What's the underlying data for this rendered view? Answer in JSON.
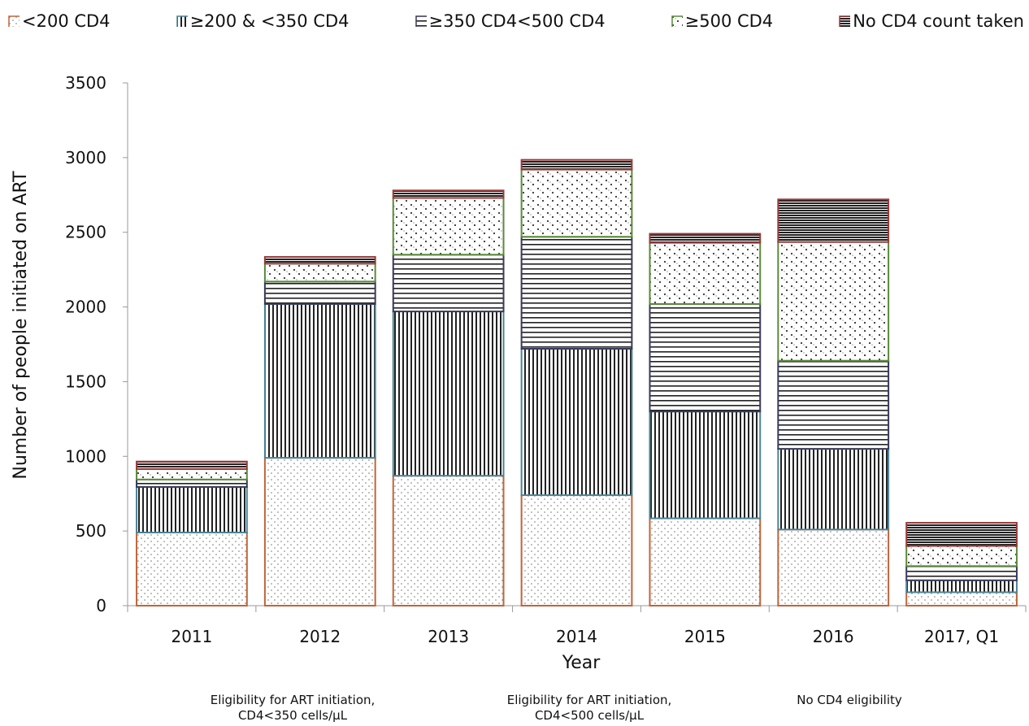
{
  "legend": [
    {
      "label": "<200 CD4",
      "key": "lt200"
    },
    {
      "label": "≥200 & <350 CD4",
      "key": "200to350"
    },
    {
      "label": "≥350 CD4<500 CD4",
      "key": "350to500"
    },
    {
      "label": "≥500 CD4",
      "key": "ge500"
    },
    {
      "label": "No CD4 count taken",
      "key": "none"
    }
  ],
  "notes": {
    "note1_line1": "Eligibility for ART initiation,",
    "note1_line2": "CD4<350 cells/µL",
    "note2_line1": "Eligibility for ART initiation,",
    "note2_line2": "CD4<500 cells/µL",
    "note3": "No CD4 eligibility"
  },
  "chart_data": {
    "type": "bar",
    "stacked": true,
    "xlabel": "Year",
    "ylabel": "Number of people initiated on ART",
    "ylim": [
      0,
      3500
    ],
    "yticks": [
      0,
      500,
      1000,
      1500,
      2000,
      2500,
      3000,
      3500
    ],
    "categories": [
      "2011",
      "2012",
      "2013",
      "2014",
      "2015",
      "2016",
      "2017, Q1"
    ],
    "series": [
      {
        "name": "<200 CD4",
        "values": [
          490,
          990,
          870,
          740,
          585,
          510,
          90
        ],
        "border": "#c0653a",
        "pattern": "fine-dots"
      },
      {
        "name": "≥200 & <350 CD4",
        "values": [
          305,
          1030,
          1100,
          980,
          715,
          540,
          80
        ],
        "border": "#4a8496",
        "pattern": "vertical-lines"
      },
      {
        "name": "≥350 CD4<500 CD4",
        "values": [
          50,
          150,
          380,
          750,
          720,
          590,
          95
        ],
        "border": "#3a3a5a",
        "pattern": "horizontal-lines"
      },
      {
        "name": "≥500 CD4",
        "values": [
          70,
          120,
          380,
          450,
          410,
          795,
          135
        ],
        "border": "#5a8a3a",
        "pattern": "coarse-dots"
      },
      {
        "name": "No CD4 count taken",
        "values": [
          50,
          45,
          50,
          65,
          60,
          285,
          155
        ],
        "border": "#9a3a3a",
        "pattern": "dense-horizontal"
      }
    ]
  }
}
